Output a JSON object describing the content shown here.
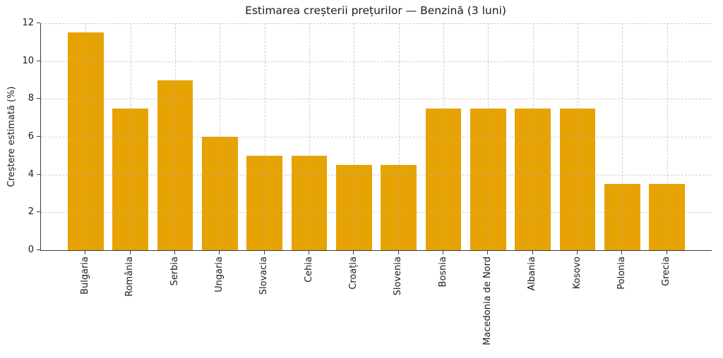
{
  "chart_data": {
    "type": "bar",
    "title": "Estimarea creșterii prețurilor — Benzină (3 luni)",
    "xlabel": "",
    "ylabel": "Creștere estimată (%)",
    "categories": [
      "Bulgaria",
      "România",
      "Serbia",
      "Ungaria",
      "Slovacia",
      "Cehia",
      "Croația",
      "Slovenia",
      "Bosnia",
      "Macedonia de Nord",
      "Albania",
      "Kosovo",
      "Polonia",
      "Grecia"
    ],
    "values": [
      11.5,
      7.5,
      9,
      6,
      5,
      5,
      4.5,
      4.5,
      7.5,
      7.5,
      7.5,
      7.5,
      3.5,
      3.5
    ],
    "ylim": [
      0,
      12
    ],
    "yticks": [
      0,
      2,
      4,
      6,
      8,
      10,
      12
    ],
    "bar_width_fraction": 0.8,
    "grid": "both-dashed-over-bars",
    "legend": "none",
    "colors": {
      "bar": "#E6A303",
      "spine": "#3c3c3c",
      "grid": "#ababab",
      "text": "#1c1c1c",
      "background": "#ffffff"
    }
  }
}
